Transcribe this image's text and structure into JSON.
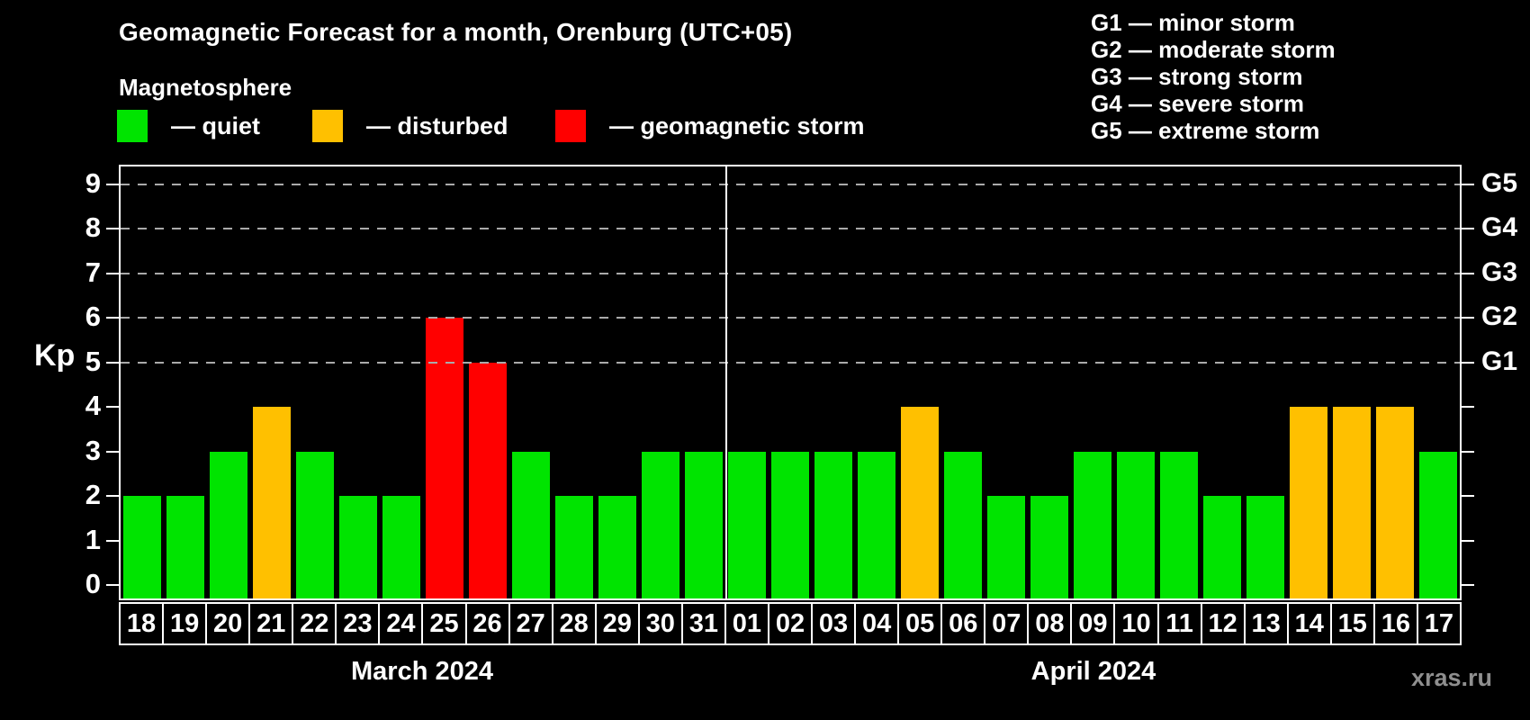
{
  "header": {
    "title": "Geomagnetic Forecast for a month, Orenburg (UTC+05)",
    "subtitle": "Magnetosphere"
  },
  "legend": {
    "items": [
      {
        "name": "quiet",
        "swatch_color": "#00e400",
        "label": "— quiet"
      },
      {
        "name": "disturbed",
        "swatch_color": "#ffc000",
        "label": "— disturbed"
      },
      {
        "name": "storm",
        "swatch_color": "#ff0000",
        "label": "— geomagnetic storm"
      }
    ]
  },
  "storm_scale": {
    "lines": [
      "G1 — minor storm",
      "G2 — moderate storm",
      "G3 — strong storm",
      "G4 — severe storm",
      "G5 — extreme storm"
    ]
  },
  "watermark": "xras.ru",
  "chart_data": {
    "type": "bar",
    "ylabel": "Kp",
    "ylim": [
      0,
      9.4
    ],
    "yticks": [
      0,
      1,
      2,
      3,
      4,
      5,
      6,
      7,
      8,
      9
    ],
    "gridlines_at": [
      5,
      6,
      7,
      8,
      9
    ],
    "grid_style": "dashed horizontal, gray",
    "right_axis": [
      {
        "kp": 5,
        "label": "G1"
      },
      {
        "kp": 6,
        "label": "G2"
      },
      {
        "kp": 7,
        "label": "G3"
      },
      {
        "kp": 8,
        "label": "G4"
      },
      {
        "kp": 9,
        "label": "G5"
      }
    ],
    "colors": {
      "quiet": "#00e400",
      "disturbed": "#ffc000",
      "storm": "#ff0000"
    },
    "months": [
      {
        "label": "March 2024",
        "days": [
          {
            "date": "18",
            "kp": 2,
            "state": "quiet"
          },
          {
            "date": "19",
            "kp": 2,
            "state": "quiet"
          },
          {
            "date": "20",
            "kp": 3,
            "state": "quiet"
          },
          {
            "date": "21",
            "kp": 4,
            "state": "disturbed"
          },
          {
            "date": "22",
            "kp": 3,
            "state": "quiet"
          },
          {
            "date": "23",
            "kp": 2,
            "state": "quiet"
          },
          {
            "date": "24",
            "kp": 2,
            "state": "quiet"
          },
          {
            "date": "25",
            "kp": 6,
            "state": "storm"
          },
          {
            "date": "26",
            "kp": 5,
            "state": "storm"
          },
          {
            "date": "27",
            "kp": 3,
            "state": "quiet"
          },
          {
            "date": "28",
            "kp": 2,
            "state": "quiet"
          },
          {
            "date": "29",
            "kp": 2,
            "state": "quiet"
          },
          {
            "date": "30",
            "kp": 3,
            "state": "quiet"
          },
          {
            "date": "31",
            "kp": 3,
            "state": "quiet"
          }
        ]
      },
      {
        "label": "April 2024",
        "days": [
          {
            "date": "01",
            "kp": 3,
            "state": "quiet"
          },
          {
            "date": "02",
            "kp": 3,
            "state": "quiet"
          },
          {
            "date": "03",
            "kp": 3,
            "state": "quiet"
          },
          {
            "date": "04",
            "kp": 3,
            "state": "quiet"
          },
          {
            "date": "05",
            "kp": 4,
            "state": "disturbed"
          },
          {
            "date": "06",
            "kp": 3,
            "state": "quiet"
          },
          {
            "date": "07",
            "kp": 2,
            "state": "quiet"
          },
          {
            "date": "08",
            "kp": 2,
            "state": "quiet"
          },
          {
            "date": "09",
            "kp": 3,
            "state": "quiet"
          },
          {
            "date": "10",
            "kp": 3,
            "state": "quiet"
          },
          {
            "date": "11",
            "kp": 3,
            "state": "quiet"
          },
          {
            "date": "12",
            "kp": 2,
            "state": "quiet"
          },
          {
            "date": "13",
            "kp": 2,
            "state": "quiet"
          },
          {
            "date": "14",
            "kp": 4,
            "state": "disturbed"
          },
          {
            "date": "15",
            "kp": 4,
            "state": "disturbed"
          },
          {
            "date": "16",
            "kp": 4,
            "state": "disturbed"
          },
          {
            "date": "17",
            "kp": 3,
            "state": "quiet"
          }
        ]
      }
    ]
  }
}
